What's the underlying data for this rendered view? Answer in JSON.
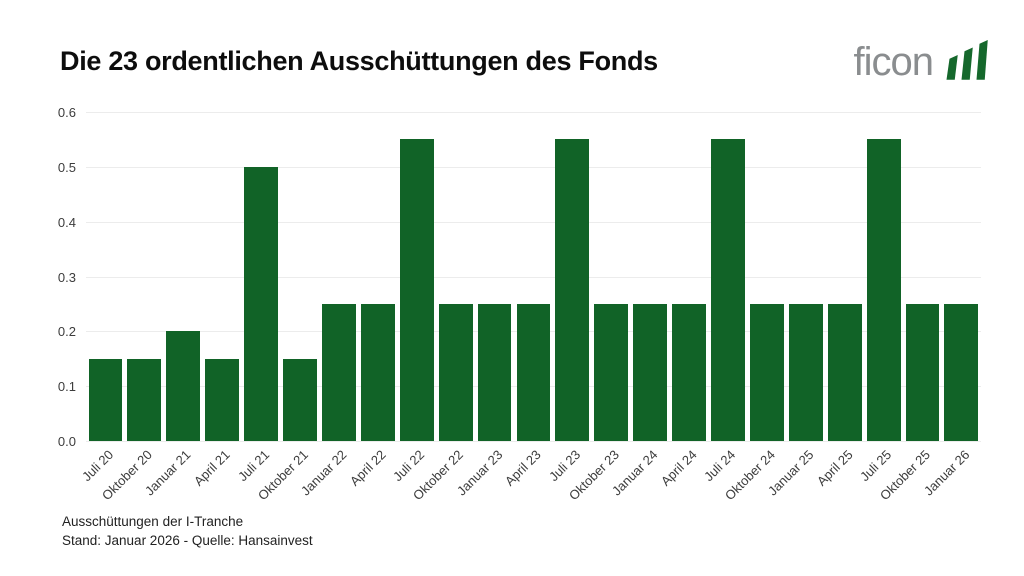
{
  "header": {
    "title": "Die 23 ordentlichen Ausschüttungen des Fonds",
    "logo": {
      "text": "ficon",
      "icon": "rising-bars-icon"
    }
  },
  "chart_data": {
    "type": "bar",
    "title": "Die 23 ordentlichen Ausschüttungen des Fonds",
    "categories": [
      "Juli 20",
      "Oktober 20",
      "Januar 21",
      "April 21",
      "Juli 21",
      "Oktober 21",
      "Januar 22",
      "April 22",
      "Juli 22",
      "Oktober 22",
      "Januar 23",
      "April 23",
      "Juli 23",
      "Oktober 23",
      "Januar 24",
      "April 24",
      "Juli 24",
      "Oktober 24",
      "Januar 25",
      "April 25",
      "Juli 25",
      "Oktober 25",
      "Januar 26"
    ],
    "values": [
      0.15,
      0.15,
      0.2,
      0.15,
      0.5,
      0.15,
      0.25,
      0.25,
      0.55,
      0.25,
      0.25,
      0.25,
      0.55,
      0.25,
      0.25,
      0.25,
      0.55,
      0.25,
      0.25,
      0.25,
      0.55,
      0.25,
      0.25
    ],
    "xlabel": "",
    "ylabel": "",
    "ylim": [
      0,
      0.6
    ],
    "yticks": [
      "0.0",
      "0.1",
      "0.2",
      "0.3",
      "0.4",
      "0.5",
      "0.6"
    ],
    "grid": true,
    "legend_position": "none",
    "x_tick_rotation_deg": 45,
    "bar_color": "#116327",
    "gridline_color": "#ececec",
    "tick_label_color": "#3c3c3c"
  },
  "footer": {
    "line1": "Ausschüttungen der I-Tranche",
    "line2": "Stand: Januar 2026 - Quelle: Hansainvest"
  },
  "colors": {
    "background": "#ffffff",
    "title": "#0d0d0d",
    "logo_text": "#8a8d8f",
    "logo_bars": "#15682c"
  }
}
